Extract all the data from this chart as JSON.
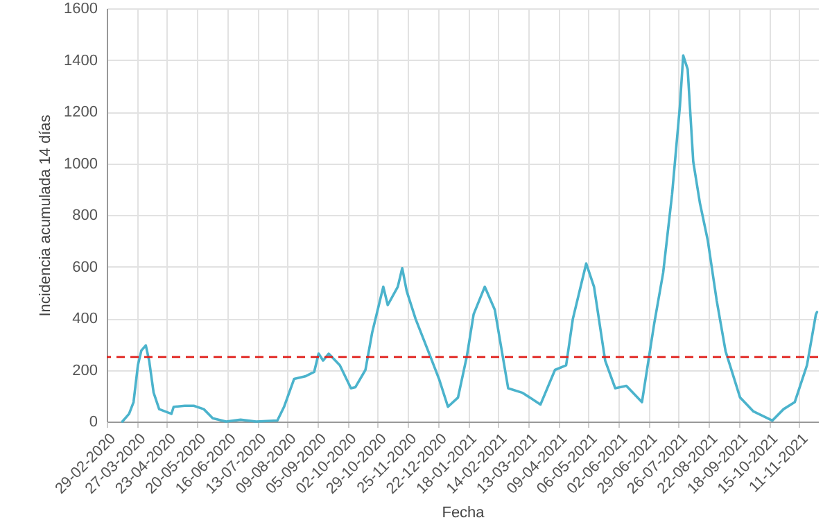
{
  "chart_data": {
    "type": "line",
    "xlabel": "Fecha",
    "ylabel": "Incidencia acumulada 14 días",
    "x": [
      "2020-03-14",
      "2020-03-20",
      "2020-03-24",
      "2020-03-28",
      "2020-03-31",
      "2020-04-04",
      "2020-04-07",
      "2020-04-11",
      "2020-04-16",
      "2020-04-27",
      "2020-04-29",
      "2020-05-09",
      "2020-05-17",
      "2020-05-26",
      "2020-06-03",
      "2020-06-15",
      "2020-06-28",
      "2020-07-12",
      "2020-07-31",
      "2020-08-06",
      "2020-08-15",
      "2020-08-25",
      "2020-09-02",
      "2020-09-06",
      "2020-09-10",
      "2020-09-15",
      "2020-09-25",
      "2020-10-05",
      "2020-10-09",
      "2020-10-18",
      "2020-10-24",
      "2020-11-03",
      "2020-11-07",
      "2020-11-16",
      "2020-11-20",
      "2020-11-24",
      "2020-12-02",
      "2020-12-15",
      "2020-12-23",
      "2020-12-31",
      "2021-01-09",
      "2021-01-17",
      "2021-01-23",
      "2021-02-02",
      "2021-02-11",
      "2021-02-23",
      "2021-03-08",
      "2021-03-24",
      "2021-04-06",
      "2021-04-16",
      "2021-04-22",
      "2021-05-04",
      "2021-05-11",
      "2021-05-21",
      "2021-05-30",
      "2021-06-09",
      "2021-06-23",
      "2021-07-04",
      "2021-07-12",
      "2021-07-20",
      "2021-07-27",
      "2021-07-30",
      "2021-08-03",
      "2021-08-08",
      "2021-08-14",
      "2021-08-21",
      "2021-08-29",
      "2021-09-06",
      "2021-09-19",
      "2021-10-01",
      "2021-10-18",
      "2021-10-28",
      "2021-11-07",
      "2021-11-18",
      "2021-11-26",
      "2021-11-27"
    ],
    "series": [
      {
        "color": "#4bb3cc",
        "values": [
          0,
          30,
          75,
          220,
          275,
          295,
          236,
          112,
          48,
          30,
          57,
          61,
          61,
          48,
          13,
          0,
          7,
          0,
          4,
          57,
          165,
          175,
          192,
          263,
          236,
          263,
          218,
          129,
          133,
          200,
          344,
          522,
          451,
          522,
          594,
          505,
          397,
          254,
          165,
          57,
          93,
          254,
          415,
          522,
          433,
          129,
          111,
          66,
          200,
          218,
          397,
          612,
          522,
          236,
          129,
          138,
          75,
          380,
          576,
          880,
          1220,
          1417,
          1364,
          1006,
          845,
          702,
          469,
          272,
          93,
          39,
          4,
          48,
          75,
          218,
          415,
          424
        ]
      }
    ],
    "xlim": [
      "2020-02-29",
      "2021-11-28"
    ],
    "xticks": [
      {
        "value": "2020-02-29",
        "label": "29-02-2020"
      },
      {
        "value": "2020-03-27",
        "label": "27-03-2020"
      },
      {
        "value": "2020-04-23",
        "label": "23-04-2020"
      },
      {
        "value": "2020-05-20",
        "label": "20-05-2020"
      },
      {
        "value": "2020-06-16",
        "label": "16-06-2020"
      },
      {
        "value": "2020-07-13",
        "label": "13-07-2020"
      },
      {
        "value": "2020-08-09",
        "label": "09-08-2020"
      },
      {
        "value": "2020-09-05",
        "label": "05-09-2020"
      },
      {
        "value": "2020-10-02",
        "label": "02-10-2020"
      },
      {
        "value": "2020-10-29",
        "label": "29-10-2020"
      },
      {
        "value": "2020-11-25",
        "label": "25-11-2020"
      },
      {
        "value": "2020-12-22",
        "label": "22-12-2020"
      },
      {
        "value": "2021-01-18",
        "label": "18-01-2021"
      },
      {
        "value": "2021-02-14",
        "label": "14-02-2021"
      },
      {
        "value": "2021-03-13",
        "label": "13-03-2021"
      },
      {
        "value": "2021-04-09",
        "label": "09-04-2021"
      },
      {
        "value": "2021-05-06",
        "label": "06-05-2021"
      },
      {
        "value": "2021-06-02",
        "label": "02-06-2021"
      },
      {
        "value": "2021-06-29",
        "label": "29-06-2021"
      },
      {
        "value": "2021-07-26",
        "label": "26-07-2021"
      },
      {
        "value": "2021-08-22",
        "label": "22-08-2021"
      },
      {
        "value": "2021-09-18",
        "label": "18-09-2021"
      },
      {
        "value": "2021-10-15",
        "label": "15-10-2021"
      },
      {
        "value": "2021-11-11",
        "label": "11-11-2021"
      }
    ],
    "ylim": [
      0,
      1600
    ],
    "yticks": [
      0,
      200,
      400,
      600,
      800,
      1000,
      1200,
      1400,
      1600
    ],
    "ref_lines": [
      {
        "axis": "y",
        "value": 250,
        "color": "#e0201c",
        "line_style": "dashed"
      }
    ],
    "grid": true,
    "line_style": "solid"
  }
}
